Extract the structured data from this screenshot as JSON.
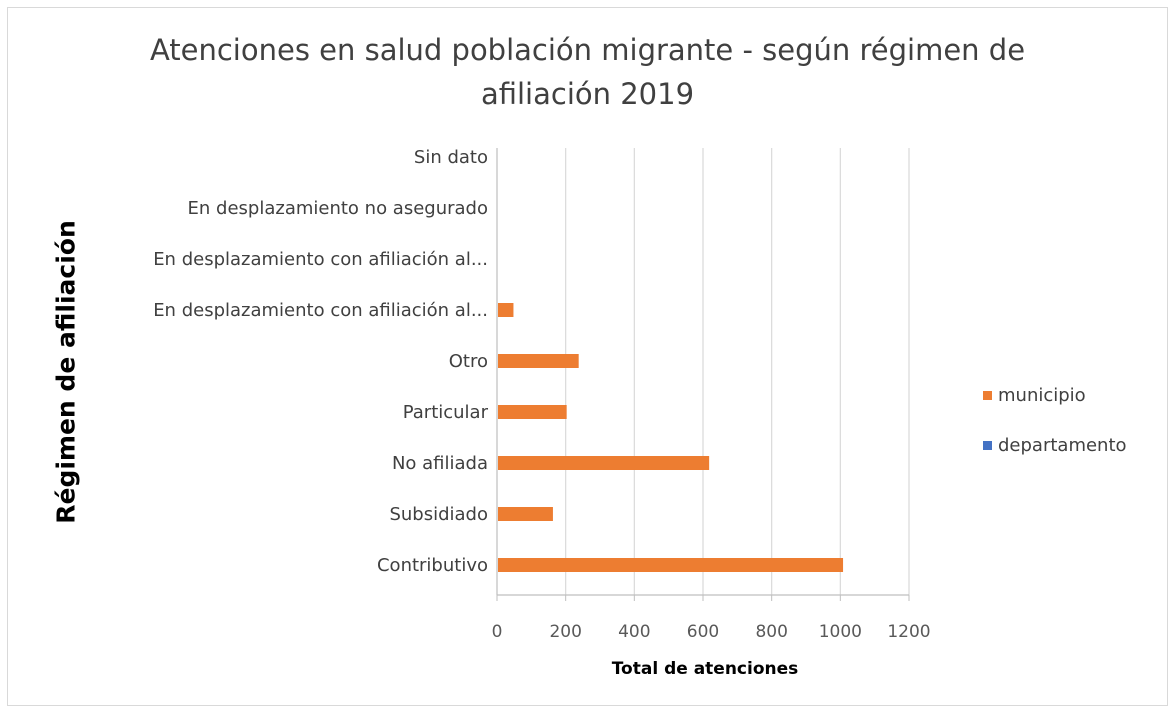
{
  "chart_data": {
    "type": "bar",
    "orientation": "horizontal",
    "title_line1": "Atenciones en salud población migrante - según régimen de",
    "title_line2": "afiliación 2019",
    "xlabel": "Total de atenciones",
    "ylabel": "Régimen de afiliación",
    "categories": [
      "Contributivo",
      "Subsidiado",
      "No afiliada",
      "Particular",
      "Otro",
      "En desplazamiento con afiliación al...",
      "En desplazamiento con afiliación al...",
      "En desplazamiento no asegurado",
      "Sin dato"
    ],
    "series": [
      {
        "name": "municipio",
        "color": "#ED7D31",
        "values": [
          1005,
          160,
          615,
          200,
          235,
          45,
          0,
          0,
          0
        ]
      },
      {
        "name": "departamento",
        "color": "#4472C4",
        "values": [
          0,
          0,
          0,
          0,
          0,
          0,
          0,
          0,
          0
        ]
      }
    ],
    "xlim": [
      0,
      1200
    ],
    "xticks": [
      "0",
      "200",
      "400",
      "600",
      "800",
      "1000",
      "1200"
    ],
    "grid": true,
    "legend_position": "right"
  }
}
